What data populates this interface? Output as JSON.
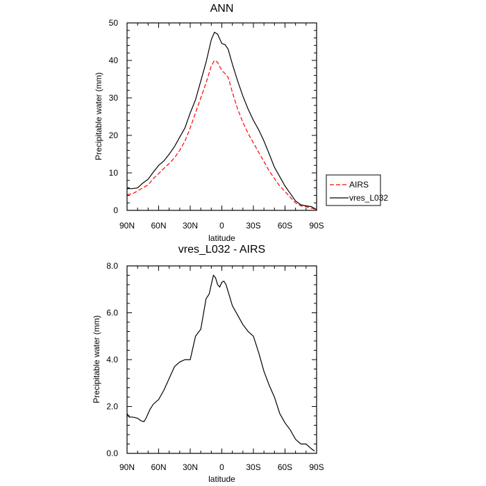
{
  "chart_data": [
    {
      "type": "line",
      "title": "ANN",
      "xlabel": "latitude",
      "ylabel": "Precipitable water (mm)",
      "xlim": [
        90,
        -90
      ],
      "ylim": [
        0,
        50
      ],
      "x_ticks": [
        90,
        60,
        30,
        0,
        -30,
        -60,
        -90
      ],
      "x_tick_labels": [
        "90N",
        "60N",
        "30N",
        "0",
        "30S",
        "60S",
        "90S"
      ],
      "y_ticks": [
        0,
        10,
        20,
        30,
        40,
        50
      ],
      "y_tick_labels": [
        "0",
        "10",
        "20",
        "30",
        "40",
        "50"
      ],
      "legend": {
        "placement": "right-bottom"
      },
      "series": [
        {
          "name": "AIRS",
          "style": "dashed",
          "color": "#ff0000",
          "x": [
            90,
            85,
            80,
            75,
            70,
            65,
            60,
            55,
            50,
            45,
            40,
            35,
            30,
            25,
            20,
            15,
            10,
            7,
            4,
            0,
            -3,
            -6,
            -10,
            -15,
            -20,
            -25,
            -30,
            -35,
            -40,
            -45,
            -50,
            -55,
            -60,
            -65,
            -70,
            -75,
            -80,
            -85,
            -90
          ],
          "values": [
            4.2,
            4.4,
            5.2,
            6.0,
            6.8,
            8.5,
            9.8,
            11.2,
            12.5,
            14.0,
            16.0,
            18.5,
            22.0,
            26.0,
            30.0,
            34.0,
            38.5,
            40.0,
            39.5,
            37.3,
            36.5,
            35.5,
            31.5,
            27.0,
            23.5,
            20.5,
            18.0,
            15.5,
            13.0,
            10.5,
            8.5,
            6.5,
            5.0,
            3.5,
            2.0,
            1.2,
            1.0,
            0.6,
            0.2
          ]
        },
        {
          "name": "vres_L032",
          "style": "solid",
          "color": "#000000",
          "x": [
            90,
            85,
            80,
            75,
            70,
            65,
            60,
            55,
            50,
            45,
            40,
            35,
            30,
            25,
            20,
            15,
            10,
            7,
            4,
            0,
            -3,
            -6,
            -10,
            -15,
            -20,
            -25,
            -30,
            -35,
            -40,
            -45,
            -50,
            -55,
            -60,
            -65,
            -70,
            -75,
            -80,
            -85,
            -90
          ],
          "values": [
            5.8,
            5.8,
            6.0,
            7.3,
            8.3,
            10.2,
            12.0,
            13.2,
            15.0,
            17.0,
            19.5,
            22.0,
            26.0,
            29.5,
            34.5,
            39.5,
            45.5,
            47.5,
            47.0,
            44.5,
            44.2,
            43.0,
            39.0,
            34.5,
            30.5,
            27.0,
            24.0,
            21.5,
            18.5,
            15.0,
            11.5,
            9.0,
            6.5,
            4.5,
            2.5,
            1.5,
            1.2,
            1.0,
            0.2
          ]
        }
      ]
    },
    {
      "type": "line",
      "title": "vres_L032 - AIRS",
      "xlabel": "latitude",
      "ylabel": "Precipitable water (mm)",
      "xlim": [
        90,
        -90
      ],
      "ylim": [
        0,
        8
      ],
      "x_ticks": [
        90,
        60,
        30,
        0,
        -30,
        -60,
        -90
      ],
      "x_tick_labels": [
        "90N",
        "60N",
        "30N",
        "0",
        "30S",
        "60S",
        "90S"
      ],
      "y_ticks": [
        0,
        2,
        4,
        6,
        8
      ],
      "y_tick_labels": [
        "0.0",
        "2.0",
        "4.0",
        "6.0",
        "8.0"
      ],
      "series": [
        {
          "name": "vres_L032 - AIRS",
          "style": "solid",
          "color": "#000000",
          "x": [
            90,
            88,
            85,
            80,
            77,
            74,
            72,
            68,
            65,
            60,
            55,
            50,
            45,
            40,
            35,
            30,
            25,
            20,
            15,
            12,
            10,
            8,
            6,
            4,
            2,
            0,
            -2,
            -4,
            -6,
            -10,
            -15,
            -20,
            -25,
            -30,
            -35,
            -40,
            -45,
            -50,
            -55,
            -60,
            -65,
            -70,
            -75,
            -80,
            -85,
            -88
          ],
          "values": [
            1.7,
            1.55,
            1.55,
            1.5,
            1.4,
            1.35,
            1.5,
            1.9,
            2.1,
            2.3,
            2.7,
            3.2,
            3.7,
            3.9,
            4.0,
            4.0,
            5.0,
            5.3,
            6.6,
            6.8,
            7.2,
            7.6,
            7.5,
            7.2,
            7.1,
            7.3,
            7.35,
            7.2,
            6.9,
            6.3,
            5.9,
            5.5,
            5.2,
            5.0,
            4.3,
            3.5,
            2.9,
            2.4,
            1.7,
            1.3,
            1.0,
            0.6,
            0.4,
            0.4,
            0.2,
            0.1
          ]
        }
      ]
    }
  ]
}
